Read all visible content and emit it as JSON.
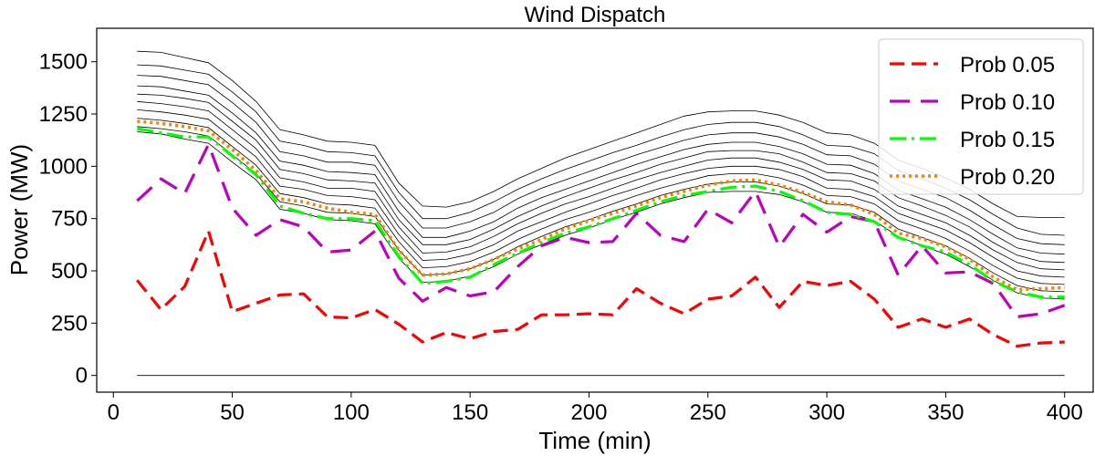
{
  "chart_data": {
    "type": "line",
    "title": "Wind Dispatch",
    "xlabel": "Time (min)",
    "ylabel": "Power (MW)",
    "xlim": [
      -7,
      412
    ],
    "ylim": [
      -80,
      1660
    ],
    "xticks": [
      0,
      50,
      100,
      150,
      200,
      250,
      300,
      350,
      400
    ],
    "yticks": [
      0,
      250,
      500,
      750,
      1000,
      1250,
      1500
    ],
    "grid": false,
    "legend_position": "top-right",
    "x": [
      10,
      20,
      30,
      40,
      50,
      60,
      70,
      80,
      90,
      100,
      110,
      120,
      130,
      140,
      150,
      160,
      170,
      180,
      190,
      200,
      210,
      220,
      230,
      240,
      250,
      260,
      270,
      280,
      290,
      300,
      310,
      320,
      330,
      340,
      350,
      360,
      370,
      380,
      390,
      400
    ],
    "series": [
      {
        "name": "Prob 0.05",
        "color": "#ff0000",
        "dash": "16 8",
        "width": 3.2,
        "values": [
          455,
          315,
          425,
          690,
          305,
          345,
          385,
          390,
          280,
          275,
          315,
          245,
          160,
          205,
          175,
          210,
          220,
          290,
          290,
          295,
          290,
          415,
          345,
          295,
          365,
          380,
          470,
          325,
          450,
          430,
          450,
          365,
          230,
          270,
          230,
          270,
          195,
          140,
          155,
          160
        ]
      },
      {
        "name": "Prob 0.10",
        "color": "#c000c0",
        "dash": "22 12",
        "width": 3.2,
        "values": [
          835,
          940,
          870,
          1105,
          800,
          670,
          745,
          710,
          590,
          600,
          690,
          465,
          355,
          420,
          380,
          400,
          520,
          620,
          660,
          635,
          640,
          775,
          670,
          640,
          795,
          730,
          880,
          615,
          770,
          685,
          760,
          735,
          480,
          620,
          490,
          495,
          440,
          280,
          295,
          335
        ]
      },
      {
        "name": "Prob 0.15",
        "color": "#00ff00",
        "dash": "18 6 3 6",
        "width": 3.2,
        "values": [
          1180,
          1160,
          1140,
          1140,
          1050,
          960,
          810,
          775,
          750,
          750,
          740,
          570,
          440,
          450,
          470,
          530,
          585,
          635,
          680,
          710,
          750,
          790,
          830,
          860,
          880,
          900,
          905,
          880,
          835,
          780,
          770,
          735,
          660,
          620,
          590,
          530,
          450,
          400,
          375,
          375
        ]
      },
      {
        "name": "Prob 0.20",
        "color": "#ff8000",
        "dash": "3 4",
        "width": 3.6,
        "values": [
          1215,
          1205,
          1190,
          1170,
          1080,
          980,
          845,
          830,
          800,
          780,
          770,
          600,
          480,
          485,
          510,
          555,
          605,
          650,
          700,
          740,
          775,
          810,
          850,
          880,
          910,
          930,
          935,
          910,
          875,
          830,
          815,
          770,
          680,
          655,
          615,
          555,
          470,
          410,
          415,
          420
        ]
      }
    ],
    "reference_lines": {
      "color": "#000000",
      "width": 0.8,
      "lines": [
        [
          1165,
          1155,
          1130,
          1110,
          1020,
          935,
          795,
          775,
          745,
          740,
          725,
          560,
          445,
          450,
          475,
          520,
          580,
          625,
          670,
          705,
          745,
          780,
          820,
          850,
          875,
          880,
          880,
          865,
          830,
          780,
          775,
          740,
          665,
          620,
          580,
          520,
          455,
          395,
          370,
          365
        ],
        [
          1190,
          1180,
          1165,
          1145,
          1055,
          965,
          830,
          810,
          780,
          775,
          760,
          600,
          480,
          485,
          510,
          555,
          615,
          665,
          710,
          745,
          785,
          820,
          860,
          890,
          915,
          925,
          925,
          905,
          870,
          820,
          815,
          780,
          700,
          660,
          620,
          560,
          490,
          430,
          405,
          400
        ],
        [
          1230,
          1220,
          1205,
          1185,
          1095,
          1005,
          870,
          850,
          820,
          815,
          800,
          640,
          515,
          520,
          545,
          590,
          650,
          700,
          745,
          780,
          820,
          860,
          895,
          925,
          955,
          965,
          965,
          945,
          910,
          860,
          855,
          820,
          740,
          700,
          655,
          595,
          525,
          465,
          440,
          435
        ],
        [
          1270,
          1260,
          1245,
          1225,
          1135,
          1045,
          905,
          890,
          860,
          855,
          840,
          675,
          550,
          555,
          580,
          625,
          690,
          735,
          780,
          820,
          860,
          895,
          935,
          965,
          990,
          1000,
          1000,
          985,
          950,
          895,
          890,
          855,
          775,
          735,
          695,
          635,
          565,
          500,
          475,
          470
        ],
        [
          1310,
          1300,
          1285,
          1265,
          1175,
          1085,
          945,
          925,
          895,
          895,
          880,
          710,
          585,
          590,
          615,
          665,
          725,
          775,
          820,
          855,
          895,
          935,
          970,
          1000,
          1030,
          1040,
          1040,
          1020,
          985,
          935,
          930,
          890,
          810,
          770,
          730,
          670,
          600,
          540,
          510,
          505
        ],
        [
          1345,
          1340,
          1325,
          1305,
          1215,
          1125,
          985,
          965,
          935,
          930,
          920,
          745,
          625,
          625,
          650,
          700,
          760,
          810,
          855,
          895,
          935,
          970,
          1010,
          1040,
          1070,
          1075,
          1075,
          1060,
          1020,
          970,
          965,
          930,
          850,
          810,
          765,
          710,
          635,
          575,
          545,
          540
        ],
        [
          1385,
          1380,
          1360,
          1340,
          1255,
          1160,
          1025,
          1005,
          975,
          970,
          960,
          785,
          660,
          660,
          690,
          735,
          800,
          850,
          890,
          930,
          970,
          1010,
          1045,
          1080,
          1105,
          1115,
          1115,
          1095,
          1060,
          1010,
          1005,
          965,
          885,
          845,
          805,
          745,
          675,
          610,
          585,
          580
        ],
        [
          1435,
          1430,
          1410,
          1390,
          1305,
          1210,
          1070,
          1050,
          1020,
          1020,
          1005,
          830,
          705,
          705,
          735,
          780,
          845,
          895,
          935,
          975,
          1015,
          1055,
          1090,
          1125,
          1150,
          1160,
          1160,
          1140,
          1105,
          1055,
          1050,
          1010,
          930,
          890,
          850,
          790,
          720,
          655,
          630,
          625
        ],
        [
          1485,
          1480,
          1460,
          1440,
          1355,
          1260,
          1120,
          1100,
          1070,
          1065,
          1050,
          875,
          750,
          750,
          780,
          830,
          890,
          940,
          985,
          1025,
          1065,
          1100,
          1140,
          1175,
          1200,
          1210,
          1210,
          1190,
          1150,
          1100,
          1095,
          1060,
          980,
          940,
          895,
          840,
          770,
          705,
          675,
          670
        ],
        [
          1550,
          1545,
          1520,
          1495,
          1410,
          1310,
          1175,
          1150,
          1120,
          1115,
          1100,
          920,
          810,
          805,
          830,
          880,
          940,
          990,
          1040,
          1080,
          1120,
          1160,
          1200,
          1240,
          1260,
          1265,
          1265,
          1245,
          1210,
          1160,
          1150,
          1110,
          1030,
          990,
          945,
          890,
          820,
          760,
          755,
          755
        ],
        [
          0,
          0,
          0,
          0,
          0,
          0,
          0,
          0,
          0,
          0,
          0,
          0,
          0,
          0,
          0,
          0,
          0,
          0,
          0,
          0,
          0,
          0,
          0,
          0,
          0,
          0,
          0,
          0,
          0,
          0,
          0,
          0,
          0,
          0,
          0,
          0,
          0,
          0,
          0,
          0
        ]
      ]
    }
  }
}
